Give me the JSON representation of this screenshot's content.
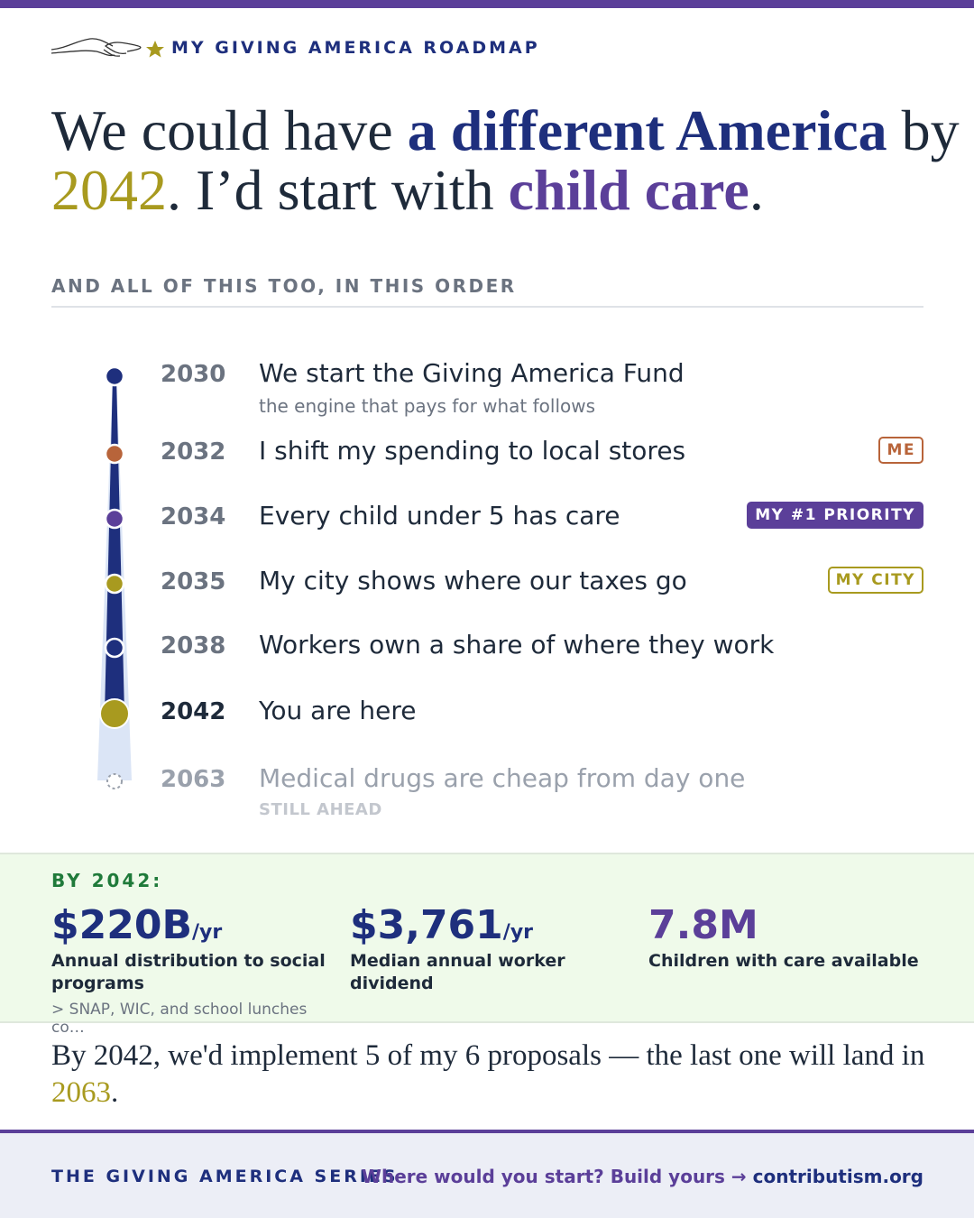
{
  "header": {
    "label": "MY GIVING AMERICA ROADMAP"
  },
  "headline": {
    "parts": [
      {
        "text": "We could have ",
        "color": "#1e2a3a"
      },
      {
        "text": "a different America",
        "color": "#1e2f7d"
      },
      {
        "text": " by",
        "color": "#1e2a3a"
      },
      {
        "text": "2042",
        "color": "#a89a1f"
      },
      {
        "text": ". I’d start with ",
        "color": "#1e2a3a"
      },
      {
        "text": "child care",
        "color": "#5b3f99"
      },
      {
        "text": ".",
        "color": "#1e2a3a"
      }
    ]
  },
  "section_label": "AND ALL OF THIS TOO, IN THIS ORDER",
  "timeline": [
    {
      "year": "2030",
      "title": "We start the Giving America Fund",
      "subtitle": "the engine that pays for what follows",
      "color": "#1e2f7d"
    },
    {
      "year": "2032",
      "title": "I shift my spending to local stores",
      "tag": "ME",
      "color": "#b8643a"
    },
    {
      "year": "2034",
      "title": "Every child under 5 has care",
      "tag": "MY #1 PRIORITY",
      "color": "#5b3f99"
    },
    {
      "year": "2035",
      "title": "My city shows where our taxes go",
      "tag": "MY CITY",
      "color": "#a89a1f"
    },
    {
      "year": "2038",
      "title": "Workers own a share of where they work",
      "color": "#1e2f7d"
    },
    {
      "year": "2042",
      "title": "You are here",
      "color": "#a89a1f"
    },
    {
      "year": "2063",
      "title": "Medical drugs are cheap from day one",
      "note": "STILL AHEAD",
      "color": "#9aa1ac"
    }
  ],
  "stats": {
    "label": "BY 2042:",
    "items": [
      {
        "value": "$220B",
        "unit": "/yr",
        "label": "Annual distribution to social programs",
        "note": "> SNAP, WIC, and school lunches co…",
        "color": "#1e2f7d"
      },
      {
        "value": "$3,761",
        "unit": "/yr",
        "label": "Median annual worker dividend",
        "color": "#1e2f7d"
      },
      {
        "value": "7.8M",
        "label": "Children with care available",
        "color": "#5b3f99"
      }
    ]
  },
  "summary": {
    "parts": [
      {
        "text": "By 2042, we'd implement 5 of my 6 proposals — the last one will land in ",
        "color": "#1e2a3a"
      },
      {
        "text": "2063",
        "color": "#a89a1f"
      },
      {
        "text": ".",
        "color": "#1e2a3a"
      }
    ]
  },
  "footer": {
    "series": "THE GIVING AMERICA SERIES",
    "prompt": "Where would you start? Build yours → ",
    "link": "contributism.org"
  }
}
